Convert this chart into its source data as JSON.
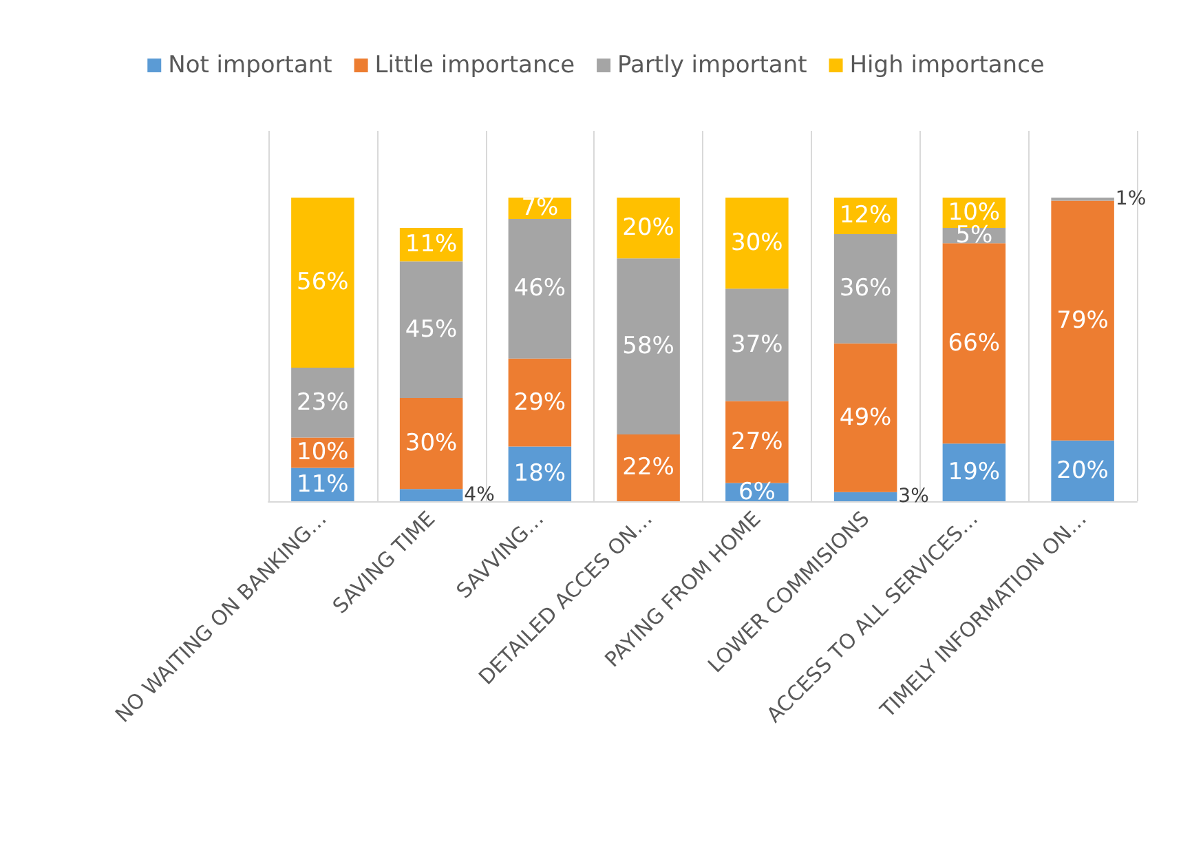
{
  "chart_data": {
    "type": "bar",
    "stacked": true,
    "grid": "x",
    "legend": "top",
    "categories": [
      "NO WAITING ON BANKING…",
      "SAVING TIME",
      "SAVVING…",
      "DETAILED ACCES ON…",
      "PAYING FROM HOME",
      "LOWER COMMISIONS",
      "ACCESS TO ALL SERVICES…",
      "TIMELY INFORMATION ON…"
    ],
    "series": [
      {
        "name": "Not important",
        "color": "#5b9bd5",
        "values": [
          11,
          4,
          18,
          null,
          6,
          3,
          19,
          20
        ],
        "value_labels": [
          "11%",
          "4%",
          "18%",
          null,
          "6%",
          "3%",
          "19%",
          "20%"
        ]
      },
      {
        "name": "Little importance",
        "color": "#ed7d31",
        "values": [
          10,
          30,
          29,
          22,
          27,
          49,
          66,
          79
        ],
        "value_labels": [
          "10%",
          "30%",
          "29%",
          "22%",
          "27%",
          "49%",
          "66%",
          "79%"
        ]
      },
      {
        "name": "Partly important",
        "color": "#a5a5a5",
        "values": [
          23,
          45,
          46,
          58,
          37,
          36,
          5,
          1
        ],
        "value_labels": [
          "23%",
          "45%",
          "46%",
          "58%",
          "37%",
          "36%",
          "5%",
          "1%"
        ]
      },
      {
        "name": "High importance",
        "color": "#ffc000",
        "values": [
          56,
          11,
          7,
          20,
          30,
          12,
          10,
          null
        ],
        "value_labels": [
          "56%",
          "11%",
          "7%",
          "20%",
          "30%",
          "12%",
          "10%",
          null
        ]
      }
    ]
  }
}
